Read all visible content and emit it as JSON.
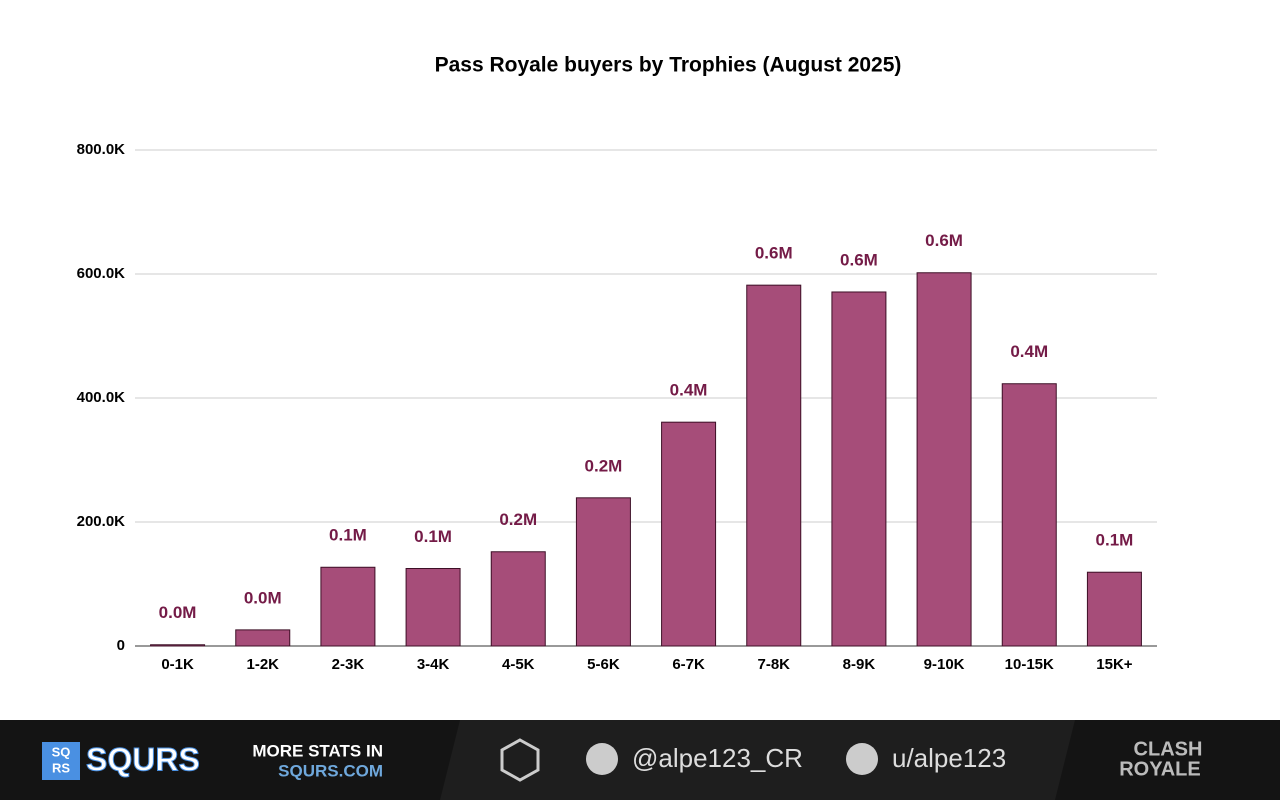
{
  "chart_data": {
    "type": "bar",
    "title": "Pass Royale buyers by Trophies  (August 2025)",
    "categories": [
      "0-1K",
      "1-2K",
      "2-3K",
      "3-4K",
      "4-5K",
      "5-6K",
      "6-7K",
      "7-8K",
      "8-9K",
      "9-10K",
      "10-15K",
      "15K+"
    ],
    "values": [
      2000,
      26000,
      127000,
      125000,
      152000,
      239000,
      361000,
      582000,
      571000,
      602000,
      423000,
      119000
    ],
    "value_labels": [
      "0.0M",
      "0.0M",
      "0.1M",
      "0.1M",
      "0.2M",
      "0.2M",
      "0.4M",
      "0.6M",
      "0.6M",
      "0.6M",
      "0.4M",
      "0.1M"
    ],
    "color": "#a64d79",
    "ylim": [
      0,
      800000
    ],
    "yticks": [
      0,
      {
        "value": 200000,
        "label": "200.0K"
      },
      {
        "value": 400000,
        "label": "400.0K"
      },
      {
        "value": 600000,
        "label": "600.0K"
      },
      {
        "value": 800000,
        "label": "800.0K"
      }
    ],
    "grid": true
  },
  "footer": {
    "brand": "SQURS",
    "brand_icon_top": "SQ",
    "brand_icon_bottom": "RS",
    "promo_line1": "MORE STATS IN",
    "promo_line2": "SQURS.COM",
    "twitter": "@alpe123_CR",
    "reddit": "u/alpe123",
    "game_logo_top": "CLASH",
    "game_logo_bottom": "ROYALE"
  }
}
